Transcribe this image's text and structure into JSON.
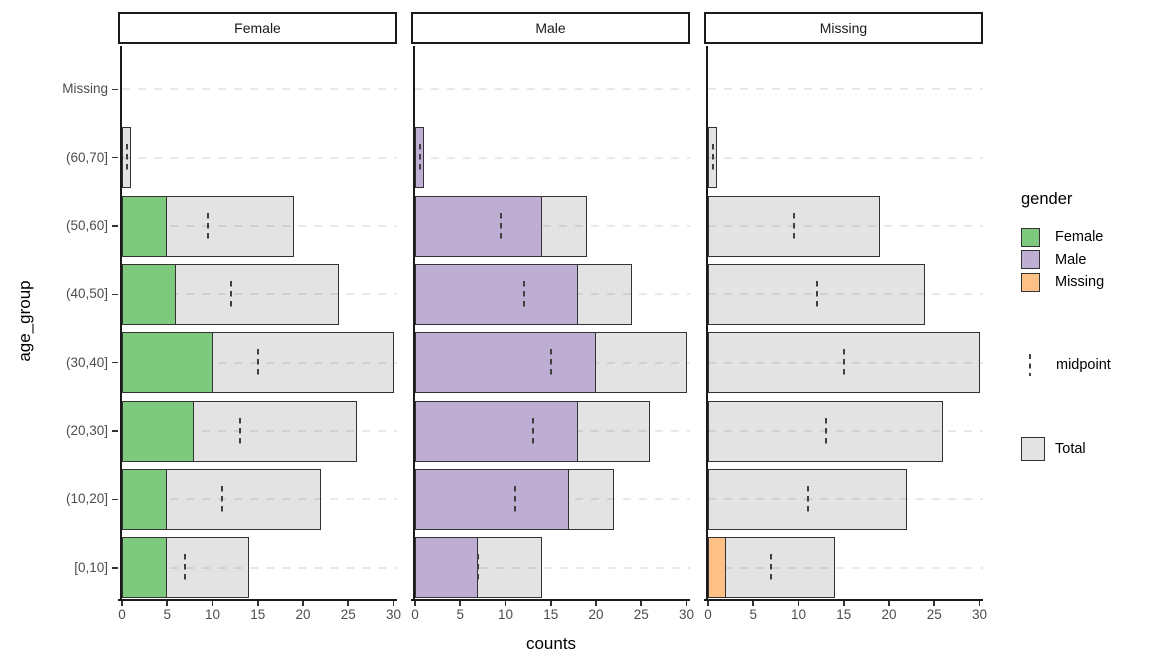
{
  "chart_data": {
    "type": "bar",
    "orientation": "horizontal",
    "title": "",
    "xlabel": "counts",
    "ylabel": "age_group",
    "x_ticks": [
      0,
      5,
      10,
      15,
      20,
      25,
      30
    ],
    "xlim": [
      0,
      30
    ],
    "grid": "dashed-horizontal-major-y",
    "legend_position": "right",
    "facets": [
      {
        "label": "Female",
        "key": "female"
      },
      {
        "label": "Male",
        "key": "male"
      },
      {
        "label": "Missing",
        "key": "missing"
      }
    ],
    "categories": [
      "Missing",
      "(60,70]",
      "(50,60]",
      "(40,50]",
      "(30,40]",
      "(20,30]",
      "(10,20]",
      "[0,10]"
    ],
    "rows": [
      {
        "label": "Missing",
        "total": 0,
        "female": 0,
        "male": 0,
        "missing": 0,
        "midpoint": null
      },
      {
        "label": "(60,70]",
        "total": 1,
        "female": 0,
        "male": 1,
        "missing": 0,
        "midpoint": 0.5
      },
      {
        "label": "(50,60]",
        "total": 19,
        "female": 5,
        "male": 14,
        "missing": 0,
        "midpoint": 9.5
      },
      {
        "label": "(40,50]",
        "total": 24,
        "female": 6,
        "male": 18,
        "missing": 0,
        "midpoint": 12
      },
      {
        "label": "(30,40]",
        "total": 30,
        "female": 10,
        "male": 20,
        "missing": 0,
        "midpoint": 15
      },
      {
        "label": "(20,30]",
        "total": 26,
        "female": 8,
        "male": 18,
        "missing": 0,
        "midpoint": 13
      },
      {
        "label": "(10,20]",
        "total": 22,
        "female": 5,
        "male": 17,
        "missing": 0,
        "midpoint": 11
      },
      {
        "label": "[0,10]",
        "total": 14,
        "female": 5,
        "male": 7,
        "missing": 2,
        "midpoint": 7
      }
    ]
  },
  "colors": {
    "female": "#7FC97F",
    "male": "#BEAED4",
    "missing": "#FDC086",
    "total_fill": "#E3E3E3",
    "bar_border": "#333333",
    "axis_text": "#4D4D4D",
    "axis_line": "#1A1A1A"
  },
  "legend": {
    "title": "gender",
    "entries": [
      {
        "label": "Female",
        "color_key": "female"
      },
      {
        "label": "Male",
        "color_key": "male"
      },
      {
        "label": "Missing",
        "color_key": "missing"
      }
    ],
    "midpoint_label": "midpoint",
    "total_label": "Total"
  }
}
